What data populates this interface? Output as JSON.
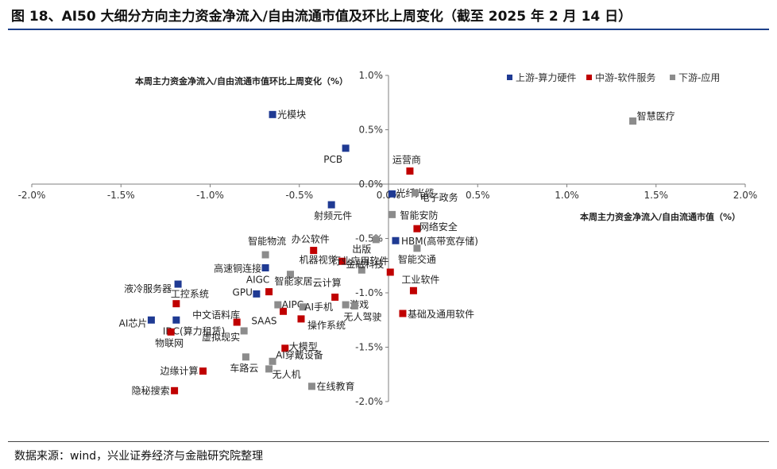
{
  "figure": {
    "title": "图 18、AI50 大细分方向主力资金净流入/自由流通市值及环比上周变化（截至 2025 年 2 月 14 日）",
    "source": "数据来源：wind，兴业证券经济与金融研究院整理"
  },
  "chart_data": {
    "type": "scatter",
    "xlabel": "本周主力资金净流入/自由流通市值（%）",
    "ylabel": "本周主力资金净流入/自由流通市值环比上周变化（%）",
    "xlim": [
      -2.0,
      2.0
    ],
    "ylim": [
      -2.0,
      1.0
    ],
    "xticks": [
      "-2.0%",
      "-1.5%",
      "-1.0%",
      "-0.5%",
      "0.0%",
      "0.5%",
      "1.0%",
      "1.5%",
      "2.0%"
    ],
    "yticks": [
      "1.0%",
      "0.5%",
      "0.0%",
      "-0.5%",
      "-1.0%",
      "-1.5%",
      "-2.0%"
    ],
    "grid": false,
    "legend_position": "top-right",
    "series": [
      {
        "name": "上游-算力硬件",
        "color": "#1f3a93",
        "points": [
          {
            "label": "光模块",
            "x": -0.65,
            "y": 0.64
          },
          {
            "label": "PCB",
            "x": -0.24,
            "y": 0.33
          },
          {
            "label": "射频元件",
            "x": -0.32,
            "y": -0.19
          },
          {
            "label": "光纤光缆",
            "x": 0.02,
            "y": -0.09
          },
          {
            "label": "HBM(高带宽存储)",
            "x": 0.04,
            "y": -0.52
          },
          {
            "label": "高速铜连接",
            "x": -0.69,
            "y": -0.77
          },
          {
            "label": "液冷服务器",
            "x": -1.18,
            "y": -0.92
          },
          {
            "label": "GPU",
            "x": -0.74,
            "y": -1.01
          },
          {
            "label": "AI芯片",
            "x": -1.33,
            "y": -1.25
          },
          {
            "label": "IDC(算力租赁)",
            "x": -1.19,
            "y": -1.25
          }
        ]
      },
      {
        "name": "中游-软件服务",
        "color": "#c00000",
        "points": [
          {
            "label": "运营商",
            "x": 0.12,
            "y": 0.12
          },
          {
            "label": "网络安全",
            "x": 0.16,
            "y": -0.41
          },
          {
            "label": "办公软件",
            "x": -0.42,
            "y": -0.61
          },
          {
            "label": "机器视觉",
            "x": -0.26,
            "y": -0.71
          },
          {
            "label": "行业应用软件",
            "x": 0.01,
            "y": -0.81
          },
          {
            "label": "工业软件",
            "x": 0.14,
            "y": -0.98
          },
          {
            "label": "AIGC",
            "x": -0.67,
            "y": -0.99
          },
          {
            "label": "云计算",
            "x": -0.3,
            "y": -1.04
          },
          {
            "label": "工控系统",
            "x": -1.19,
            "y": -1.1
          },
          {
            "label": "基础及通用软件",
            "x": 0.08,
            "y": -1.19
          },
          {
            "label": "中文语料库",
            "x": -0.85,
            "y": -1.27
          },
          {
            "label": "SAAS",
            "x": -0.59,
            "y": -1.17
          },
          {
            "label": "操作系统",
            "x": -0.49,
            "y": -1.24
          },
          {
            "label": "物联网",
            "x": -1.22,
            "y": -1.36
          },
          {
            "label": "大模型",
            "x": -0.58,
            "y": -1.51
          },
          {
            "label": "边缘计算",
            "x": -1.04,
            "y": -1.72
          },
          {
            "label": "隐秘搜索",
            "x": -1.2,
            "y": -1.9
          }
        ]
      },
      {
        "name": "下游-应用",
        "color": "#8c8c8c",
        "points": [
          {
            "label": "智慧医疗",
            "x": 1.37,
            "y": 0.58
          },
          {
            "label": "电子政务",
            "x": 0.15,
            "y": -0.08
          },
          {
            "label": "智能安防",
            "x": 0.02,
            "y": -0.28
          },
          {
            "label": "出版",
            "x": -0.07,
            "y": -0.51
          },
          {
            "label": "智能物流",
            "x": -0.69,
            "y": -0.65
          },
          {
            "label": "智能交通",
            "x": 0.16,
            "y": -0.59
          },
          {
            "label": "金融科技",
            "x": -0.15,
            "y": -0.79
          },
          {
            "label": "智能家居",
            "x": -0.55,
            "y": -0.83
          },
          {
            "label": "AIPC",
            "x": -0.62,
            "y": -1.11
          },
          {
            "label": "AI手机",
            "x": -0.48,
            "y": -1.13
          },
          {
            "label": "游戏",
            "x": -0.24,
            "y": -1.11
          },
          {
            "label": "无人驾驶",
            "x": -0.19,
            "y": -1.12
          },
          {
            "label": "虚拟现实",
            "x": -0.81,
            "y": -1.35
          },
          {
            "label": "AI穿戴设备",
            "x": -0.65,
            "y": -1.63
          },
          {
            "label": "车路云",
            "x": -0.8,
            "y": -1.59
          },
          {
            "label": "无人机",
            "x": -0.67,
            "y": -1.7
          },
          {
            "label": "在线教育",
            "x": -0.43,
            "y": -1.86
          }
        ]
      }
    ]
  }
}
